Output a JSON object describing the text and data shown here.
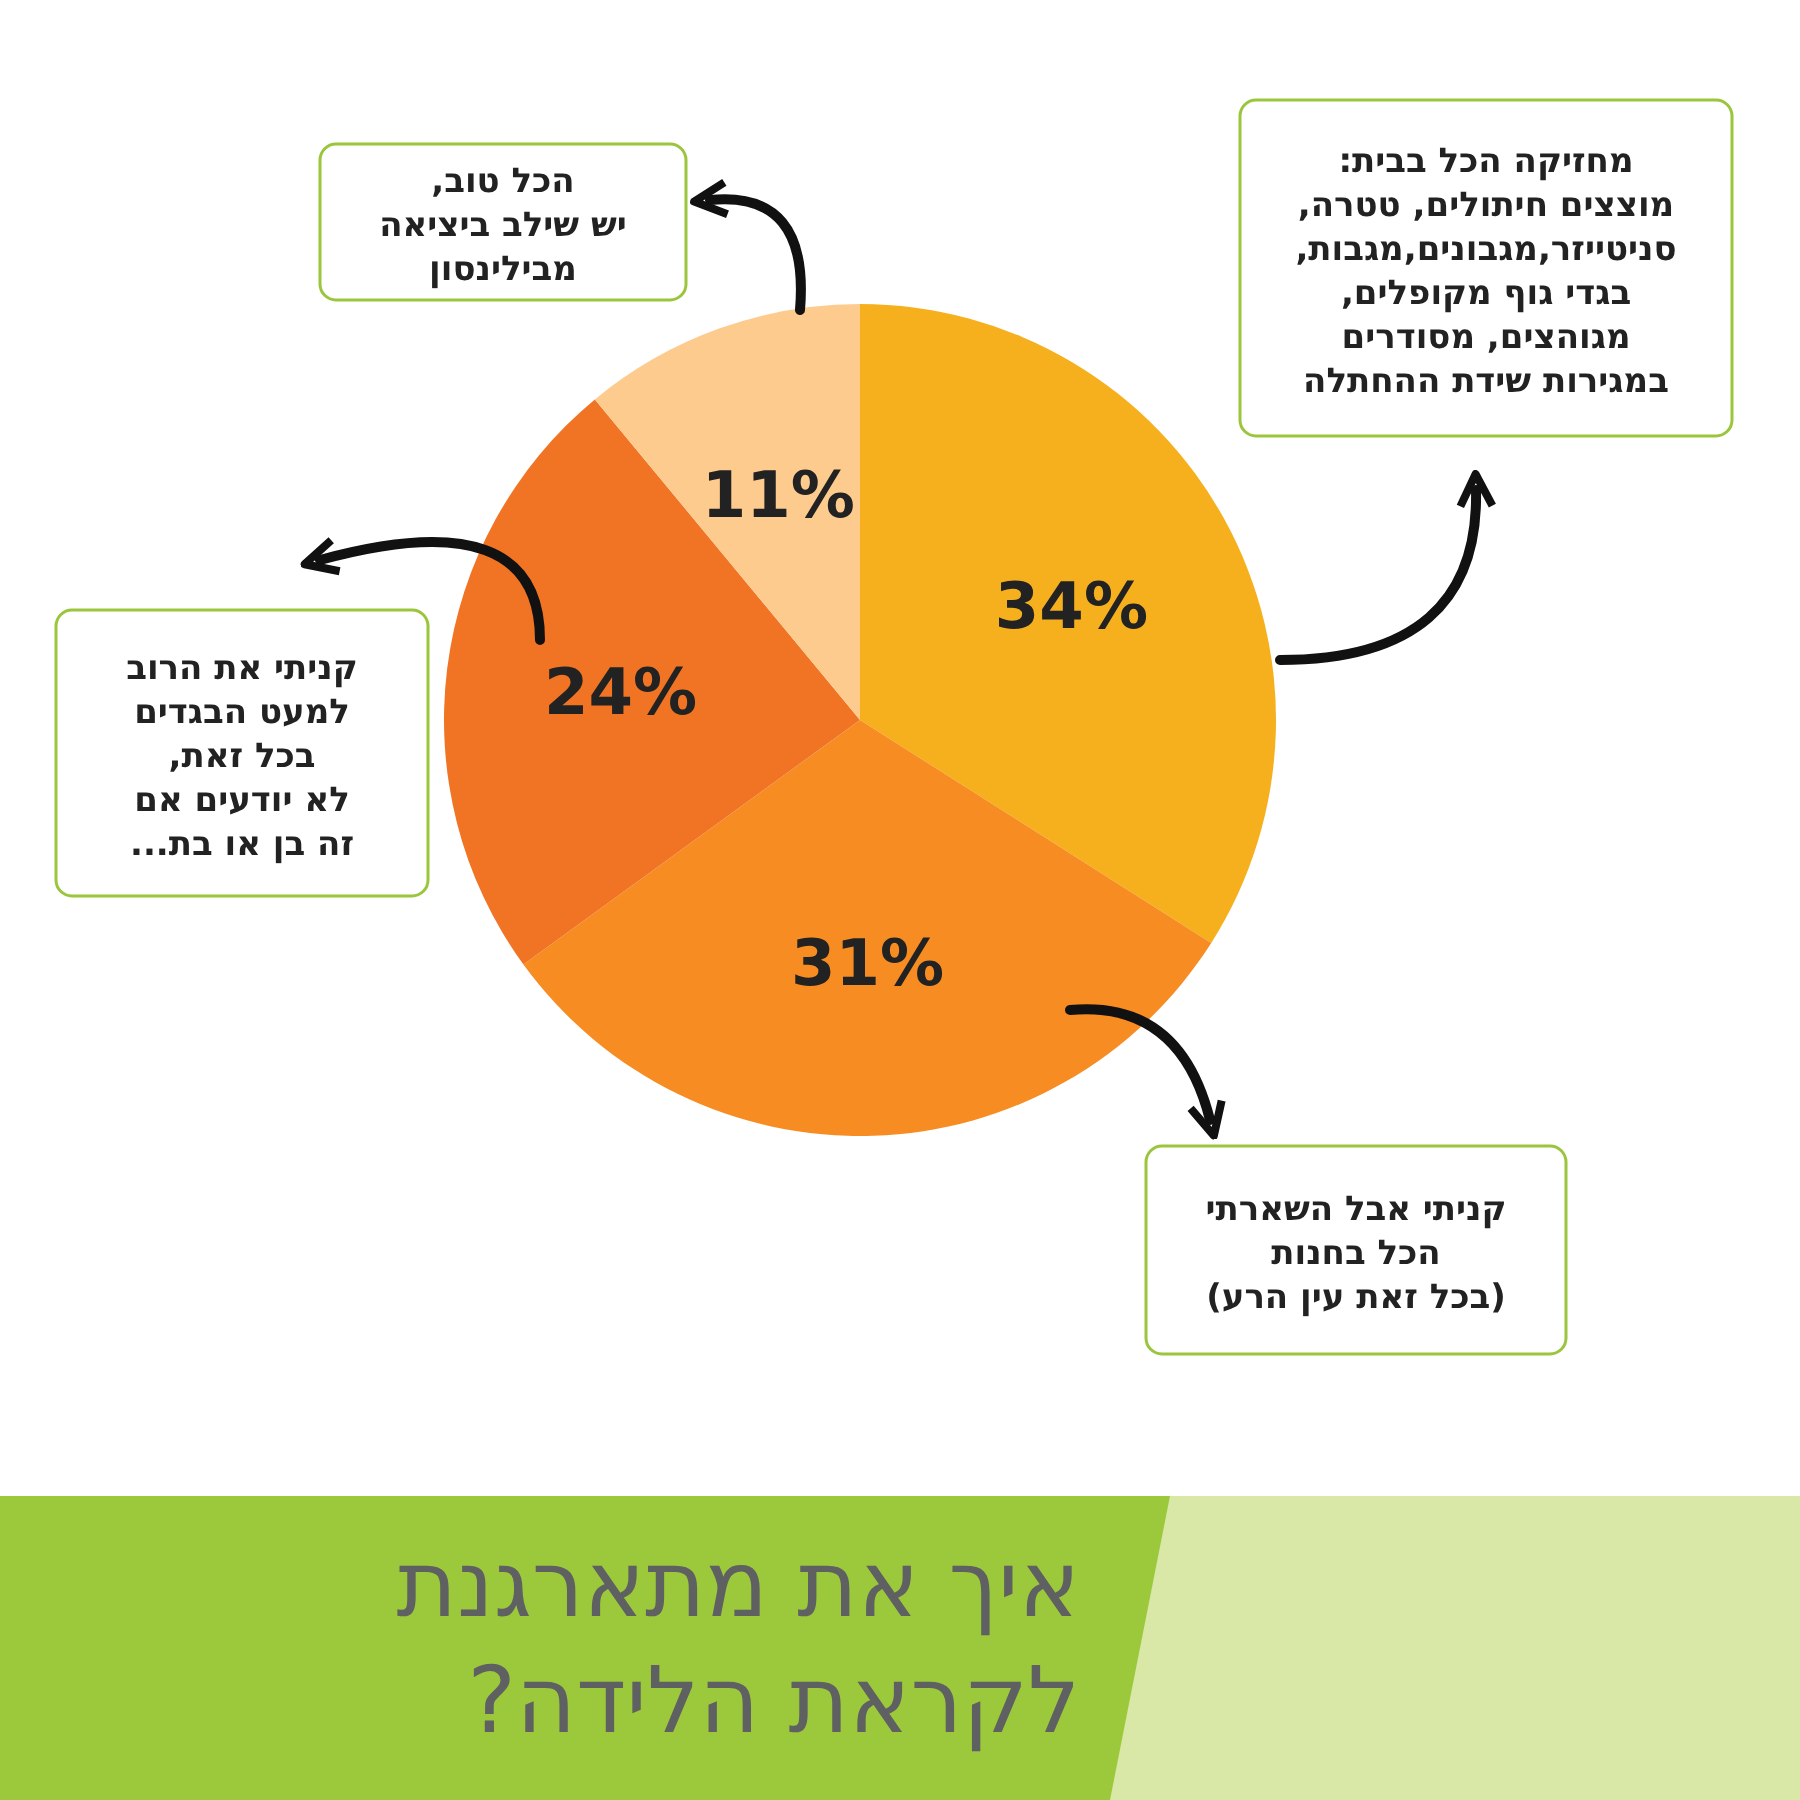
{
  "chart_data": {
    "type": "pie",
    "title": "איך את מתארגנת\nלקראת הלידה?",
    "categories": [
      "מחזיקה הכל בבית:\nמוצצים חיתולים, טטרה,\nסניטייזר,מגבונים,מגבות,\nבגדי גוף מקופלים,\nמגוהצים, מסודרים\nבמגירות שידת ההחתלה",
      "קניתי אבל השארתי\nהכל בחנות\n(בכל זאת עין הרע)",
      "קניתי את הרוב\nלמעט הבגדים\nבכל זאת,\nלא יודעים אם\nזה בן או בת...",
      "הכל טוב,\nיש שילב ביציאה\nמבילינסון"
    ],
    "values": [
      34,
      31,
      24,
      11
    ],
    "colors": [
      "#f6b01d",
      "#f68c22",
      "#f07423",
      "#fdcb8e"
    ],
    "value_labels": [
      "34%",
      "31%",
      "24%",
      "11%"
    ]
  }
}
